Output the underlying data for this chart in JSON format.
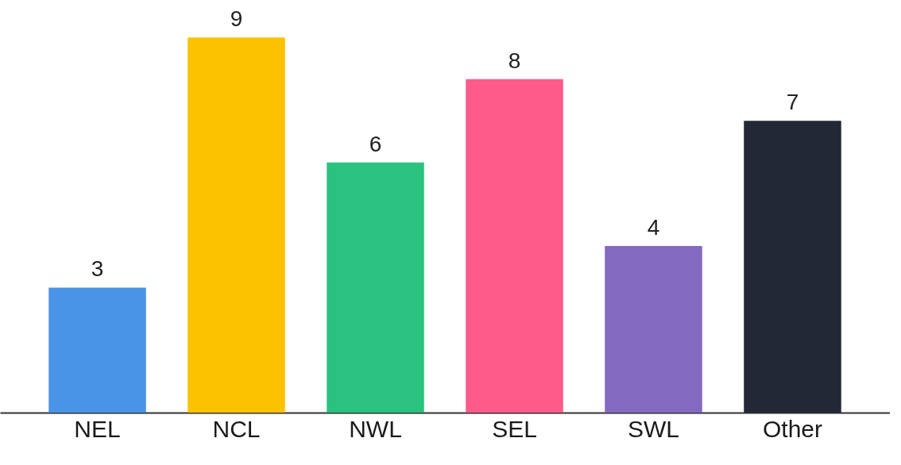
{
  "chart_data": {
    "type": "bar",
    "categories": [
      "NEL",
      "NCL",
      "NWL",
      "SEL",
      "SWL",
      "Other"
    ],
    "values": [
      3,
      9,
      6,
      8,
      4,
      7
    ],
    "colors": [
      "#4a94e8",
      "#fcc200",
      "#2ac27e",
      "#fe5a8a",
      "#8469c0",
      "#232836"
    ],
    "data_labels": true,
    "grid": false
  }
}
